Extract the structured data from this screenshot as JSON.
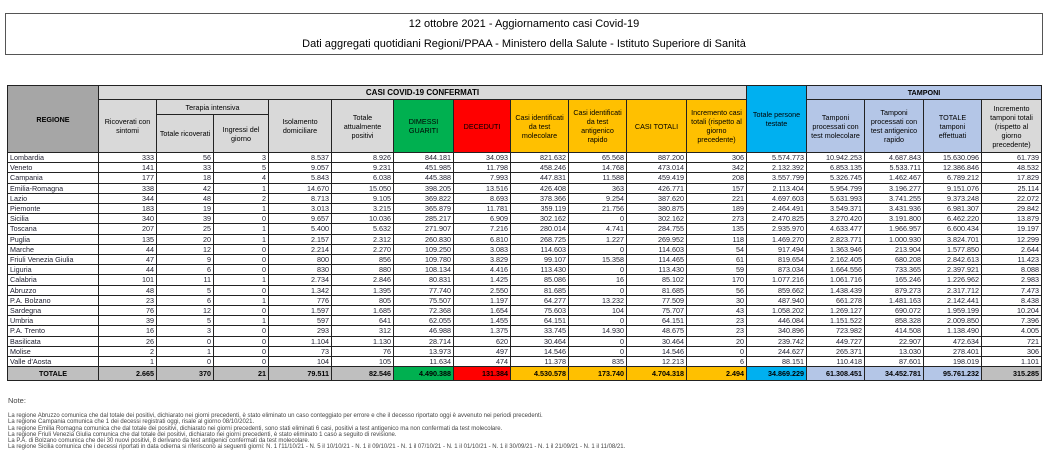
{
  "title": "12 ottobre 2021 - Aggiornamento casi Covid-19",
  "subtitle": "Dati aggregati quotidiani Regioni/PPAA - Ministero della Salute - Istituto Superiore di Sanità",
  "headers": {
    "regione": "REGIONE",
    "casi": "CASI COVID-19 CONFERMATI",
    "tamponi": "TAMPONI",
    "terapia": "Terapia intensiva",
    "cols": [
      "Ricoverati con sintomi",
      "Totale ricoverati",
      "Ingressi del giorno",
      "Isolamento domiciliare",
      "Totale attualmente positivi",
      "DIMESSI GUARITI",
      "DECEDUTI",
      "Casi identificati da test molecolare",
      "Casi identificati da test antigenico rapido",
      "CASI TOTALI",
      "Incremento casi totali (rispetto al giorno precedente)",
      "Totale persone testate",
      "Tamponi processati con test molecolare",
      "Tamponi processati con test antigenico rapido",
      "TOTALE tamponi effettuati",
      "Incremento tamponi totali (rispetto al giorno precedente)"
    ]
  },
  "rows": [
    [
      "Lombardia",
      "333",
      "56",
      "3",
      "8.537",
      "8.926",
      "844.181",
      "34.093",
      "821.632",
      "65.568",
      "887.200",
      "306",
      "5.574.773",
      "10.942.253",
      "4.687.843",
      "15.630.096",
      "61.739"
    ],
    [
      "Veneto",
      "141",
      "33",
      "5",
      "9.057",
      "9.231",
      "451.985",
      "11.798",
      "458.246",
      "14.768",
      "473.014",
      "342",
      "2.132.392",
      "6.853.135",
      "5.533.711",
      "12.386.846",
      "48.532"
    ],
    [
      "Campania",
      "177",
      "18",
      "4",
      "5.843",
      "6.038",
      "445.388",
      "7.993",
      "447.831",
      "11.588",
      "459.419",
      "208",
      "3.557.799",
      "5.326.745",
      "1.462.467",
      "6.789.212",
      "17.829"
    ],
    [
      "Emilia-Romagna",
      "338",
      "42",
      "1",
      "14.670",
      "15.050",
      "398.205",
      "13.516",
      "426.408",
      "363",
      "426.771",
      "157",
      "2.113.404",
      "5.954.799",
      "3.196.277",
      "9.151.076",
      "25.114"
    ],
    [
      "Lazio",
      "344",
      "48",
      "2",
      "8.713",
      "9.105",
      "369.822",
      "8.693",
      "378.366",
      "9.254",
      "387.620",
      "221",
      "4.697.603",
      "5.631.993",
      "3.741.255",
      "9.373.248",
      "22.072"
    ],
    [
      "Piemonte",
      "183",
      "19",
      "1",
      "3.013",
      "3.215",
      "365.879",
      "11.781",
      "359.119",
      "21.756",
      "380.875",
      "189",
      "2.464.491",
      "3.549.371",
      "3.431.936",
      "6.981.307",
      "29.842"
    ],
    [
      "Sicilia",
      "340",
      "39",
      "0",
      "9.657",
      "10.036",
      "285.217",
      "6.909",
      "302.162",
      "0",
      "302.162",
      "273",
      "2.470.825",
      "3.270.420",
      "3.191.800",
      "6.462.220",
      "13.879"
    ],
    [
      "Toscana",
      "207",
      "25",
      "1",
      "5.400",
      "5.632",
      "271.907",
      "7.216",
      "280.014",
      "4.741",
      "284.755",
      "135",
      "2.935.970",
      "4.633.477",
      "1.966.957",
      "6.600.434",
      "19.197"
    ],
    [
      "Puglia",
      "135",
      "20",
      "1",
      "2.157",
      "2.312",
      "260.830",
      "6.810",
      "268.725",
      "1.227",
      "269.952",
      "118",
      "1.469.270",
      "2.823.771",
      "1.000.930",
      "3.824.701",
      "12.299"
    ],
    [
      "Marche",
      "44",
      "12",
      "0",
      "2.214",
      "2.270",
      "109.250",
      "3.083",
      "114.603",
      "0",
      "114.603",
      "54",
      "917.494",
      "1.363.946",
      "213.904",
      "1.577.850",
      "2.644"
    ],
    [
      "Friuli Venezia Giulia",
      "47",
      "9",
      "0",
      "800",
      "856",
      "109.780",
      "3.829",
      "99.107",
      "15.358",
      "114.465",
      "61",
      "819.654",
      "2.162.405",
      "680.208",
      "2.842.613",
      "11.423"
    ],
    [
      "Liguria",
      "44",
      "6",
      "0",
      "830",
      "880",
      "108.134",
      "4.416",
      "113.430",
      "0",
      "113.430",
      "59",
      "873.034",
      "1.664.556",
      "733.365",
      "2.397.921",
      "8.088"
    ],
    [
      "Calabria",
      "101",
      "11",
      "1",
      "2.734",
      "2.846",
      "80.831",
      "1.425",
      "85.086",
      "16",
      "85.102",
      "170",
      "1.077.216",
      "1.061.716",
      "165.246",
      "1.226.962",
      "2.983"
    ],
    [
      "Abruzzo",
      "48",
      "5",
      "0",
      "1.342",
      "1.395",
      "77.740",
      "2.550",
      "81.685",
      "0",
      "81.685",
      "56",
      "859.662",
      "1.438.439",
      "879.273",
      "2.317.712",
      "7.473"
    ],
    [
      "P.A. Bolzano",
      "23",
      "6",
      "1",
      "776",
      "805",
      "75.507",
      "1.197",
      "64.277",
      "13.232",
      "77.509",
      "30",
      "487.940",
      "661.278",
      "1.481.163",
      "2.142.441",
      "8.438"
    ],
    [
      "Sardegna",
      "76",
      "12",
      "0",
      "1.597",
      "1.685",
      "72.368",
      "1.654",
      "75.603",
      "104",
      "75.707",
      "43",
      "1.058.202",
      "1.269.127",
      "690.072",
      "1.959.199",
      "10.204"
    ],
    [
      "Umbria",
      "39",
      "5",
      "1",
      "597",
      "641",
      "62.055",
      "1.455",
      "64.151",
      "0",
      "64.151",
      "23",
      "446.084",
      "1.151.522",
      "858.328",
      "2.009.850",
      "7.396"
    ],
    [
      "P.A. Trento",
      "16",
      "3",
      "0",
      "293",
      "312",
      "46.988",
      "1.375",
      "33.745",
      "14.930",
      "48.675",
      "23",
      "340.896",
      "723.982",
      "414.508",
      "1.138.490",
      "4.005"
    ],
    [
      "Basilicata",
      "26",
      "0",
      "0",
      "1.104",
      "1.130",
      "28.714",
      "620",
      "30.464",
      "0",
      "30.464",
      "20",
      "239.742",
      "449.727",
      "22.907",
      "472.634",
      "721"
    ],
    [
      "Molise",
      "2",
      "1",
      "0",
      "73",
      "76",
      "13.973",
      "497",
      "14.546",
      "0",
      "14.546",
      "0",
      "244.627",
      "265.371",
      "13.030",
      "278.401",
      "306"
    ],
    [
      "Valle d'Aosta",
      "1",
      "0",
      "0",
      "104",
      "105",
      "11.634",
      "474",
      "11.378",
      "835",
      "12.213",
      "6",
      "88.151",
      "110.418",
      "87.601",
      "198.019",
      "1.101"
    ]
  ],
  "total": [
    "TOTALE",
    "2.665",
    "370",
    "21",
    "79.511",
    "82.546",
    "4.490.388",
    "131.384",
    "4.530.578",
    "173.740",
    "4.704.318",
    "2.494",
    "34.869.229",
    "61.308.451",
    "34.452.781",
    "95.761.232",
    "315.285"
  ],
  "notes": {
    "heading": "Note:",
    "lines": [
      "La regione Abruzzo comunica che dal totale dei positivi, dichiarato nei giorni precedenti, è stato eliminato un caso conteggiato per errore e che il decesso riportato oggi è avvenuto nei periodi precedenti.",
      "La regione Campania comunica che 1 dei decessi registrati oggi, risale al giorno 08/10/2021.",
      "La regione Emilia Romagna comunica che dal totale dei positivi, dichiarato nei giorni precedenti, sono stati eliminati 6 casi, positivi a test antigenico ma non confermati da test molecolare.",
      "La regione Friuli Venezia Giulia comunica che dal totale dei positivi, dichiarato nei giorni precedenti,  è stato eliminato 1 caso a seguito di revisione.",
      "La P.A. di Bolzano comunica che dei 30 nuovi positivi, 8 derivano da test antigenici confermati da test molecolare.",
      "La regione Sicilia comunica che i decessi riportati in data odierna si riferiscono ai seguenti giorni: N. 1 l'11/10/21 - N. 5 il 10/10/21 - N. 1 il 09/10/21 - N. 1 il 07/10/21 - N. 1 il 01/10/21 - N. 1 il 30/09/21 - N. 1 il 21/09/21 - N. 1 il 11/08/21."
    ]
  }
}
